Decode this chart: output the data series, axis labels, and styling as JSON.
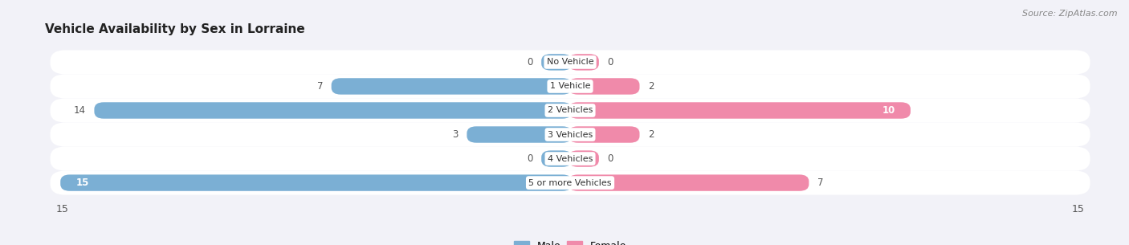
{
  "title": "Vehicle Availability by Sex in Lorraine",
  "source": "Source: ZipAtlas.com",
  "categories": [
    "No Vehicle",
    "1 Vehicle",
    "2 Vehicles",
    "3 Vehicles",
    "4 Vehicles",
    "5 or more Vehicles"
  ],
  "male_values": [
    0,
    7,
    14,
    3,
    0,
    15
  ],
  "female_values": [
    0,
    2,
    10,
    2,
    0,
    7
  ],
  "male_color": "#7bafd4",
  "female_color": "#f08aaa",
  "male_color_bright": "#5b9fd4",
  "female_color_bright": "#f06090",
  "xlim": 15,
  "bg_color": "#f2f2f8",
  "row_bg_light": "#f8f8fc",
  "row_bg_white": "#ffffff"
}
